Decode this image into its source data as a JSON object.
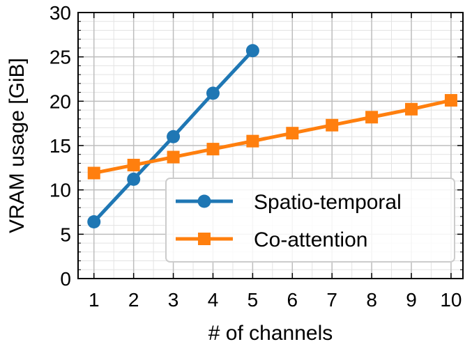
{
  "chart_data": {
    "type": "line",
    "xlabel": "# of channels",
    "ylabel": "VRAM usage [GiB]",
    "xlim": [
      0.6,
      10.3
    ],
    "ylim": [
      0,
      30
    ],
    "x_ticks": [
      1,
      2,
      3,
      4,
      5,
      6,
      7,
      8,
      9,
      10
    ],
    "y_ticks": [
      0,
      5,
      10,
      15,
      20,
      25,
      30
    ],
    "grid": true,
    "legend_position": "lower-right",
    "series": [
      {
        "name": "Spatio-temporal",
        "color": "#1f77b4",
        "marker": "circle",
        "x": [
          1,
          2,
          3,
          4,
          5
        ],
        "y": [
          6.4,
          11.2,
          16.0,
          20.9,
          25.7
        ]
      },
      {
        "name": "Co-attention",
        "color": "#ff7f0e",
        "marker": "square",
        "x": [
          1,
          2,
          3,
          4,
          5,
          6,
          7,
          8,
          9,
          10
        ],
        "y": [
          11.9,
          12.8,
          13.7,
          14.6,
          15.5,
          16.4,
          17.3,
          18.2,
          19.1,
          20.1
        ]
      }
    ]
  }
}
